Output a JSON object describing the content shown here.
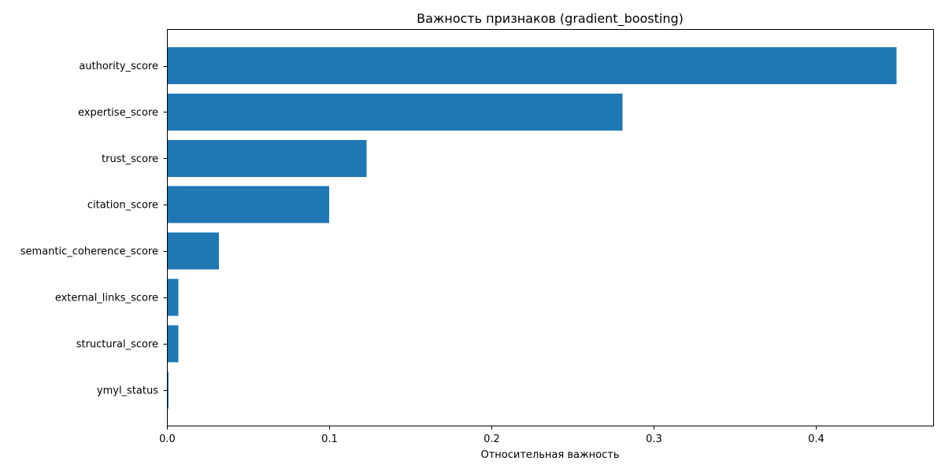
{
  "chart_data": {
    "type": "bar",
    "orientation": "horizontal",
    "title": "Важность признаков (gradient_boosting)",
    "xlabel": "Относительная важность",
    "ylabel": "",
    "categories": [
      "authority_score",
      "expertise_score",
      "trust_score",
      "citation_score",
      "semantic_coherence_score",
      "external_links_score",
      "structural_score",
      "ymyl_status"
    ],
    "values": [
      0.45,
      0.281,
      0.123,
      0.1,
      0.032,
      0.007,
      0.007,
      0.001
    ],
    "xlim": [
      0,
      0.4725
    ],
    "xticks": [
      0.0,
      0.1,
      0.2,
      0.3,
      0.4
    ],
    "xtick_labels": [
      "0.0",
      "0.1",
      "0.2",
      "0.3",
      "0.4"
    ],
    "bar_color": "#1f77b4",
    "grid": false,
    "legend": "none"
  }
}
